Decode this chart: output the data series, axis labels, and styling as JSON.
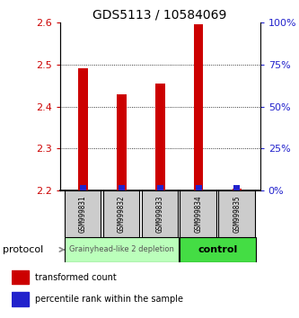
{
  "title": "GDS5113 / 10584069",
  "samples": [
    "GSM999831",
    "GSM999832",
    "GSM999833",
    "GSM999834",
    "GSM999835"
  ],
  "transformed_counts": [
    2.49,
    2.43,
    2.455,
    2.595,
    2.205
  ],
  "bar_bottom": 2.2,
  "ylim_left": [
    2.2,
    2.6
  ],
  "ylim_right": [
    0,
    100
  ],
  "yticks_left": [
    2.2,
    2.3,
    2.4,
    2.5,
    2.6
  ],
  "yticks_right": [
    0,
    25,
    50,
    75,
    100
  ],
  "red_color": "#cc0000",
  "blue_color": "#2222cc",
  "group1_label": "Grainyhead-like 2 depletion",
  "group2_label": "control",
  "group1_color": "#bbffbb",
  "group2_color": "#44dd44",
  "protocol_label": "protocol",
  "legend_red": "transformed count",
  "legend_blue": "percentile rank within the sample",
  "tick_color_left": "#cc0000",
  "tick_color_right": "#2222cc",
  "bar_width": 0.25,
  "grid_yticks": [
    2.3,
    2.4,
    2.5
  ]
}
